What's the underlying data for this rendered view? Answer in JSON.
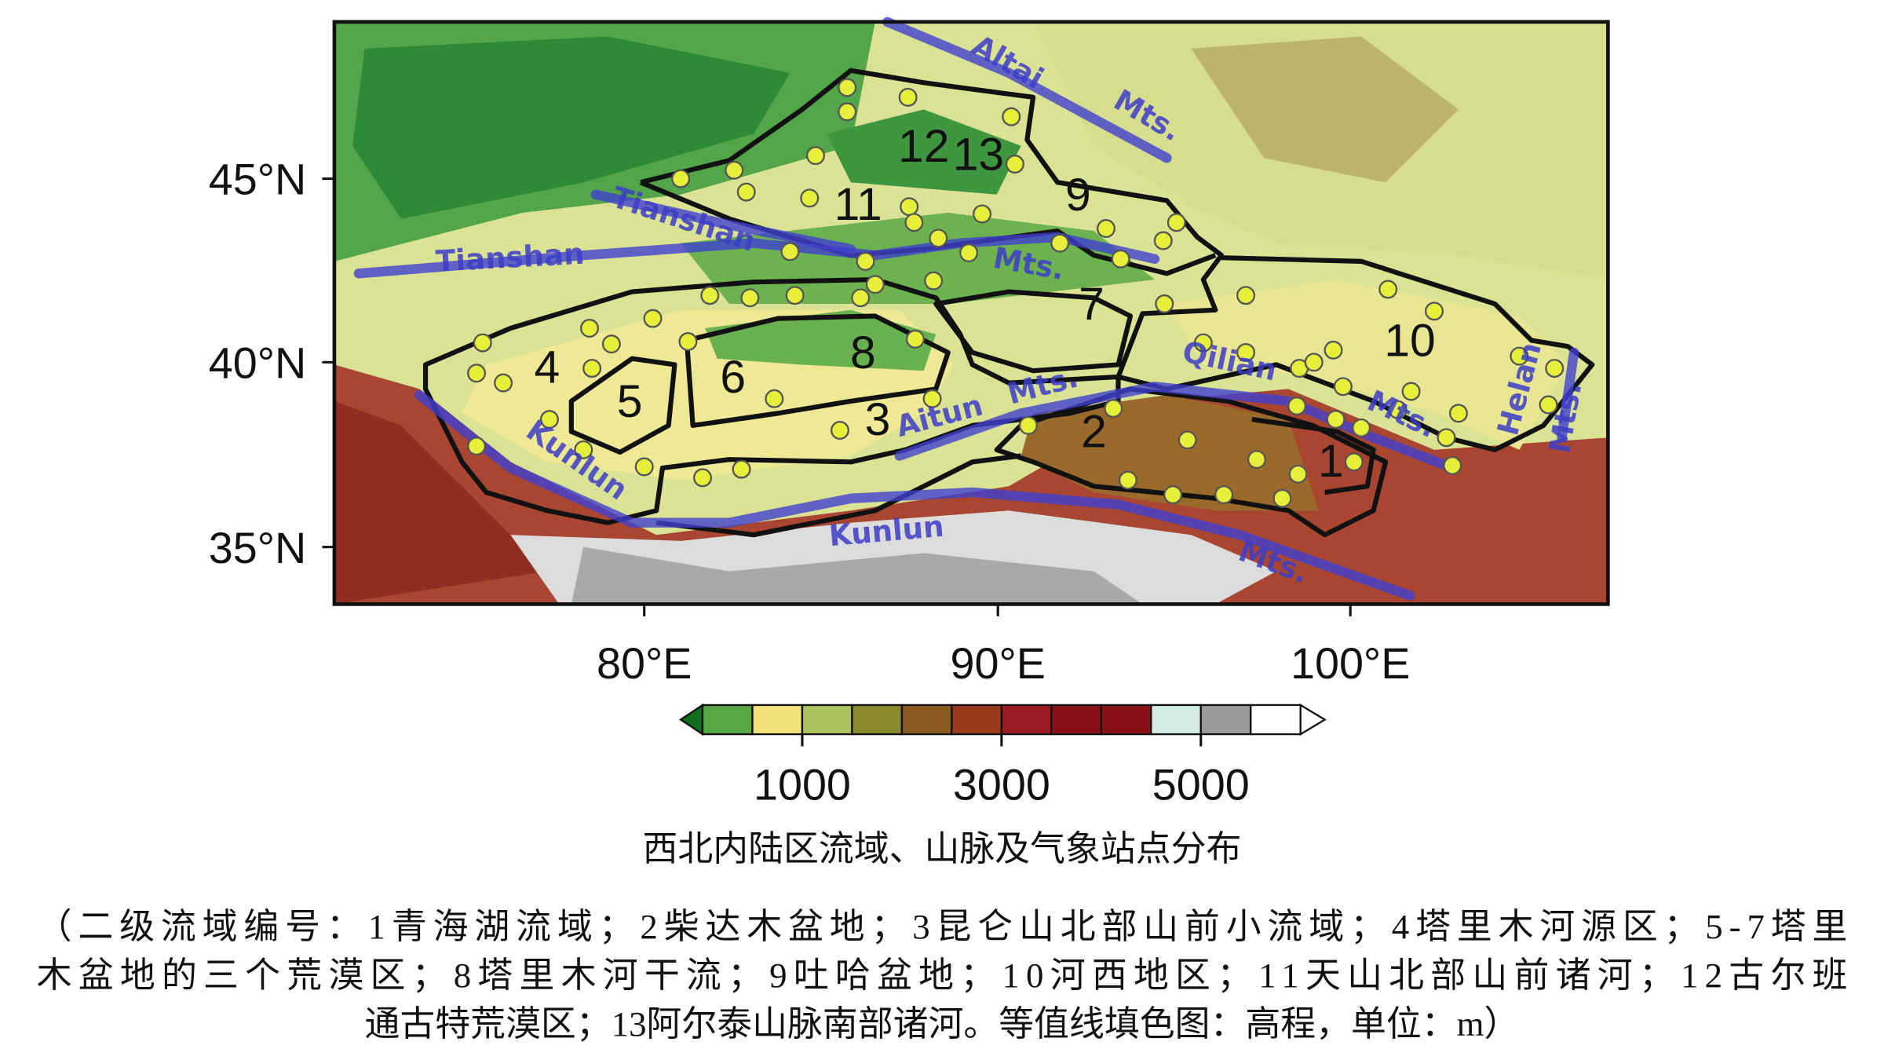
{
  "map": {
    "lat_labels": [
      "45°N",
      "40°N",
      "35°N"
    ],
    "lon_labels": [
      "80°E",
      "90°E",
      "100°E"
    ],
    "regions": [
      "1",
      "2",
      "3",
      "4",
      "5",
      "6",
      "7",
      "8",
      "9",
      "10",
      "11",
      "12",
      "13"
    ],
    "mountains": [
      "Altai",
      "Mts.",
      "Tianshan",
      "Tianshan",
      "Mts.",
      "Qilian",
      "Mts.",
      "Aitun",
      "Mts.",
      "Kunlun",
      "Kunlun",
      "Mts.",
      "Helan",
      "Mts."
    ],
    "station_color": "#e6ef3a"
  },
  "colorbar": {
    "ticks": [
      1000,
      3000,
      5000
    ],
    "colors": [
      "#116f1c",
      "#5aa845",
      "#f1e27a",
      "#a9c35d",
      "#8c8a2e",
      "#8b5a1f",
      "#9b3a1c",
      "#9b1a22",
      "#8a1018",
      "#8a1018",
      "#d4ece4",
      "#9a9a9a",
      "#ffffff",
      "#ffffff"
    ]
  },
  "caption": {
    "title": "西北内陆区流域、山脉及气象站点分布",
    "lines": [
      "（二级流域编号：1青海湖流域；2柴达木盆地；3昆仑山北部山前小流域；4塔里木河源区；5-7塔里",
      "木盆地的三个荒漠区；8塔里木河干流；9吐哈盆地；10河西地区；11天山北部山前诸河；12古尔班",
      "通古特荒漠区；13阿尔泰山脉南部诸河。等值线填色图：高程，单位：m）"
    ]
  }
}
